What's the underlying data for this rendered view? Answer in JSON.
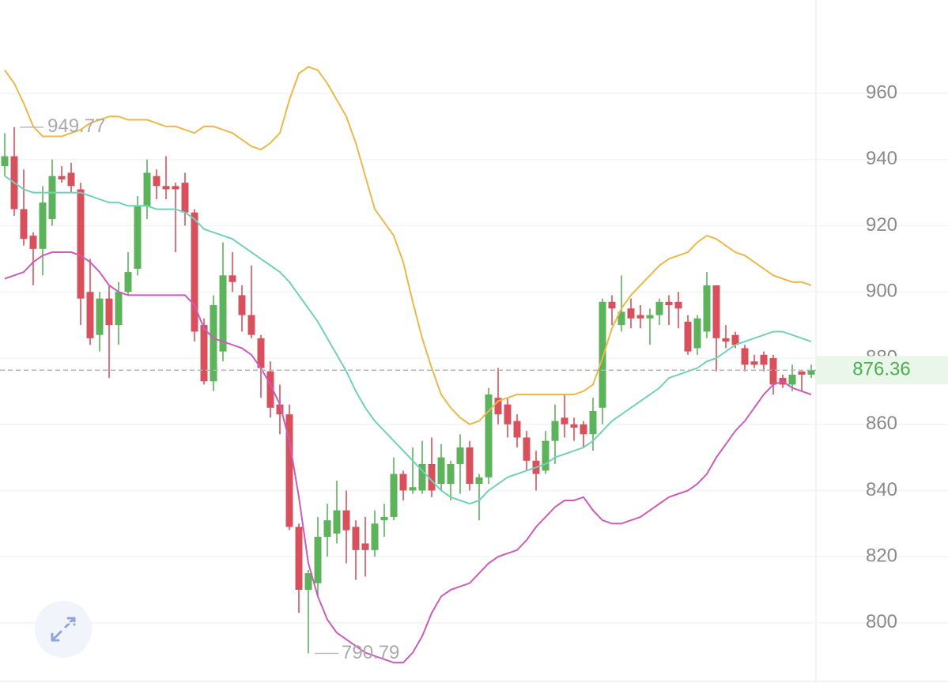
{
  "chart_data": {
    "type": "candlestick",
    "ylim": [
      782.3,
      988.2
    ],
    "yticks": [
      800,
      820,
      840,
      860,
      880,
      900,
      920,
      940,
      960
    ],
    "grid": true,
    "up_color": "#5cb35c",
    "down_color": "#d8505c",
    "open": [
      938,
      941,
      925,
      917,
      913,
      922,
      935,
      936,
      931,
      900,
      887,
      898,
      890,
      900,
      907,
      926,
      935,
      932,
      932,
      933,
      924,
      890,
      873,
      882,
      905,
      899,
      893,
      886,
      876,
      866,
      863,
      829,
      810,
      812,
      826,
      827,
      834,
      829,
      824,
      822,
      831,
      832,
      845,
      840,
      840,
      848,
      842,
      842,
      848,
      853,
      842,
      844,
      868,
      866,
      861,
      856,
      849,
      846,
      855,
      862,
      860,
      860,
      857,
      865,
      897,
      890,
      895,
      893,
      892,
      893,
      897,
      897,
      891,
      883,
      888,
      902,
      886,
      887,
      883,
      879,
      881,
      880,
      874,
      872,
      876,
      875
    ],
    "high": [
      948,
      949.77,
      937,
      918,
      932,
      940,
      938,
      939,
      933,
      910,
      900,
      902,
      903,
      912,
      929,
      940,
      937,
      941,
      933,
      936,
      925,
      892,
      899,
      915,
      912,
      902,
      908,
      887,
      879,
      872,
      866,
      830,
      816,
      832,
      836,
      843,
      840,
      831,
      832,
      834,
      836,
      850,
      846,
      853,
      855,
      856,
      854,
      849,
      857,
      855,
      845,
      871,
      877,
      868,
      863,
      858,
      852,
      858,
      866,
      869,
      862,
      861,
      868,
      898,
      899,
      905,
      898,
      896,
      895,
      898,
      899,
      900,
      893,
      893,
      906,
      902,
      890,
      888,
      884,
      881,
      882,
      881,
      875,
      878,
      876,
      878
    ],
    "low": [
      935,
      923,
      914,
      902,
      905,
      920,
      933,
      930,
      890,
      884,
      882,
      874,
      884,
      899,
      905,
      922,
      928,
      928,
      912,
      920,
      885,
      872,
      870,
      879,
      900,
      888,
      886,
      868,
      862,
      857,
      828,
      803,
      790.79,
      808,
      820,
      824,
      818,
      813,
      814,
      820,
      826,
      831,
      837,
      839,
      839,
      838,
      840,
      837,
      839,
      840,
      831,
      842,
      860,
      856,
      853,
      846,
      840,
      845,
      848,
      856,
      855,
      853,
      852,
      860,
      890,
      888,
      889,
      889,
      884,
      890,
      890,
      889,
      881,
      881,
      886,
      876,
      883,
      883,
      876,
      877,
      876,
      869,
      871,
      870,
      870,
      874
    ],
    "close": [
      941,
      925,
      916,
      913,
      927,
      935,
      934,
      932,
      898,
      886,
      898,
      890,
      900,
      906,
      926,
      936,
      932,
      931,
      931,
      924,
      888,
      873,
      896,
      905,
      903,
      893,
      887,
      877,
      865,
      863,
      829,
      810,
      815,
      826,
      831,
      834,
      828,
      822,
      822,
      830,
      832,
      845,
      840,
      841,
      848,
      840,
      850,
      848,
      853,
      842,
      844,
      869,
      863,
      860,
      856,
      849,
      845,
      855,
      861,
      860,
      859,
      857,
      864,
      897,
      895,
      894,
      892,
      892,
      893,
      897,
      896,
      895,
      882,
      892,
      902,
      886,
      885,
      884,
      878,
      878,
      878,
      872,
      872,
      875,
      875,
      876.36
    ],
    "series": [
      {
        "color": "#e9b949",
        "values": [
          967,
          963,
          957,
          950,
          947,
          947,
          947,
          948,
          949,
          951,
          952,
          953,
          953,
          952,
          952,
          952,
          951,
          950,
          950,
          949,
          948,
          950,
          950,
          949,
          948,
          946,
          944,
          943,
          945,
          948,
          958,
          966,
          968,
          967,
          963,
          958,
          953,
          945,
          935,
          925,
          921,
          917,
          909,
          897,
          886,
          877,
          869,
          865,
          862,
          860,
          861,
          864,
          867,
          868,
          869,
          869,
          869,
          869,
          869,
          869,
          869,
          870,
          872,
          880,
          889,
          895,
          899,
          902,
          905,
          908,
          910,
          911,
          912,
          915,
          917,
          916,
          914,
          912,
          911,
          909,
          907,
          905,
          904,
          903,
          903,
          902
        ]
      },
      {
        "color": "#72d0b6",
        "values": [
          935,
          933,
          931,
          930,
          930,
          930,
          930,
          930,
          930,
          929,
          928,
          927,
          927,
          926,
          926,
          926,
          925,
          925,
          925,
          924,
          922,
          919,
          918,
          917,
          916,
          914,
          912,
          910,
          908,
          906,
          903,
          899,
          895,
          891,
          886,
          881,
          876,
          870,
          865,
          861,
          858,
          855,
          852,
          849,
          846,
          843,
          840,
          838,
          837,
          836,
          837,
          840,
          842,
          844,
          845,
          846,
          847,
          848,
          850,
          851,
          852,
          853,
          855,
          858,
          861,
          863,
          865,
          867,
          869,
          871,
          874,
          875,
          876,
          877,
          879,
          880,
          882,
          884,
          885,
          886,
          887,
          888,
          888,
          887,
          886,
          885
        ]
      },
      {
        "color": "#cc5cba",
        "values": [
          904,
          905,
          906,
          909,
          911,
          912,
          912,
          912,
          911,
          909,
          906,
          902,
          900,
          899,
          899,
          899,
          899,
          899,
          899,
          899,
          896,
          889,
          886,
          885,
          884,
          883,
          881,
          877,
          872,
          866,
          855,
          838,
          818,
          808,
          801,
          797,
          795,
          793,
          791,
          790,
          789,
          788,
          788,
          791,
          796,
          803,
          808,
          810,
          811,
          812,
          815,
          818,
          820,
          821,
          822,
          825,
          829,
          832,
          835,
          837,
          837,
          838,
          834,
          831,
          830,
          830,
          831,
          832,
          834,
          836,
          838,
          839,
          840,
          842,
          845,
          850,
          854,
          858,
          861,
          865,
          869,
          872,
          873,
          871,
          870,
          869
        ]
      }
    ],
    "high_label": 949.77,
    "low_label": 790.79,
    "last_price": 876.36
  }
}
